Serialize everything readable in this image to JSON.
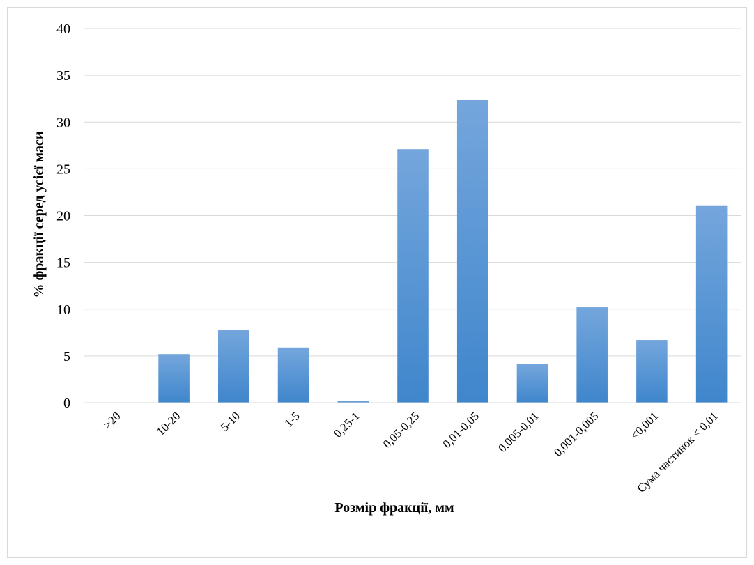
{
  "chart_data": {
    "type": "bar",
    "title": "",
    "xlabel": "Розмір фракції, мм",
    "ylabel": "% фракції серед усієї маси",
    "ylim": [
      0,
      40
    ],
    "yticks": [
      0,
      5,
      10,
      15,
      20,
      25,
      30,
      35,
      40
    ],
    "grid": true,
    "legend": "none",
    "categories": [
      ">20",
      "10-20",
      "5-10",
      "1-5",
      "0,25-1",
      "0,05-0,25",
      "0,01-0,05",
      "0,005-0,01",
      "0,001-0,005",
      "<0,001",
      "Сума частинок < 0,01"
    ],
    "values": [
      0,
      5.2,
      7.8,
      5.9,
      0.15,
      27.1,
      32.4,
      4.1,
      10.2,
      6.7,
      21.1
    ],
    "colors": {
      "bar_top": "#74a6dc",
      "bar_bottom": "#3f86cc",
      "grid": "#d9d9d9"
    }
  }
}
